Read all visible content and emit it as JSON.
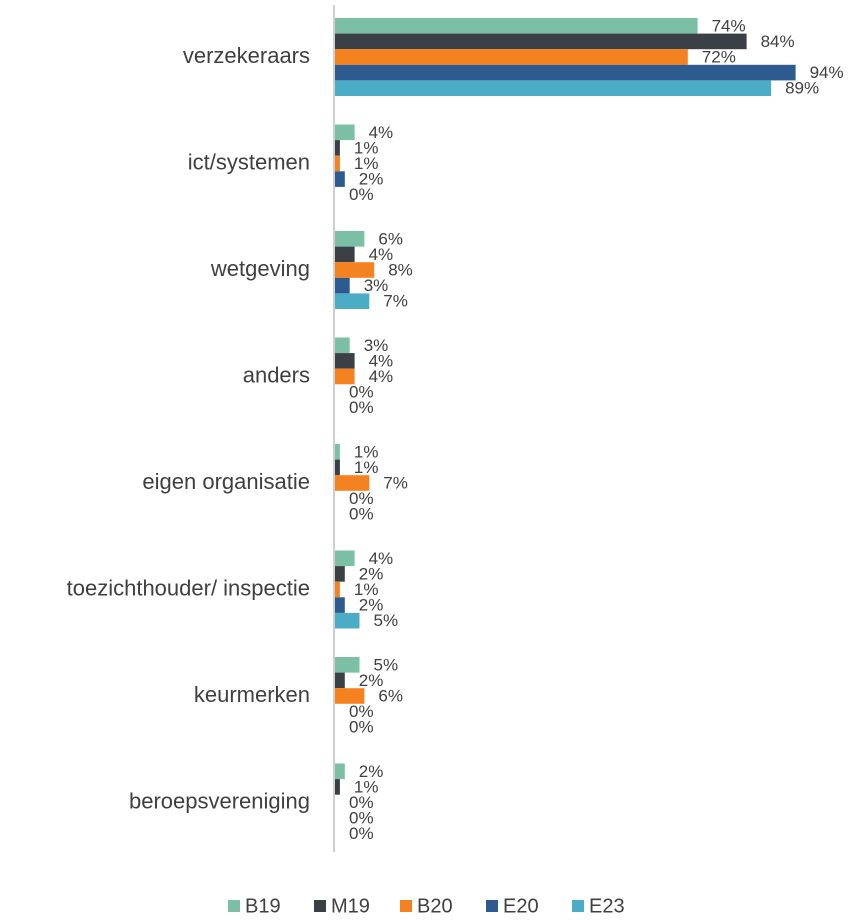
{
  "chart_data": {
    "type": "hbar",
    "categories": [
      "verzekeraars",
      "ict/systemen",
      "wetgeving",
      "anders",
      "eigen organisatie",
      "toezichthouder/ inspectie",
      "keurmerken",
      "beroepsvereniging"
    ],
    "series": [
      {
        "name": "B19",
        "color": "#7bbfa5",
        "values": [
          74,
          4,
          6,
          3,
          1,
          4,
          5,
          2
        ],
        "value_labels": [
          "74%",
          "4%",
          "6%",
          "3%",
          "1%",
          "4%",
          "5%",
          "2%"
        ]
      },
      {
        "name": "M19",
        "color": "#3b3f46",
        "values": [
          84,
          1,
          4,
          4,
          1,
          2,
          2,
          1
        ],
        "value_labels": [
          "84%",
          "1%",
          "4%",
          "4%",
          "1%",
          "2%",
          "2%",
          "1%"
        ]
      },
      {
        "name": "B20",
        "color": "#f58220",
        "values": [
          72,
          1,
          8,
          4,
          7,
          1,
          6,
          0
        ],
        "value_labels": [
          "72%",
          "1%",
          "8%",
          "4%",
          "7%",
          "1%",
          "6%",
          "0%"
        ]
      },
      {
        "name": "E20",
        "color": "#2d5a8f",
        "values": [
          94,
          2,
          3,
          0,
          0,
          2,
          0,
          0
        ],
        "value_labels": [
          "94%",
          "2%",
          "3%",
          "0%",
          "0%",
          "2%",
          "0%",
          "0%"
        ]
      },
      {
        "name": "E23",
        "color": "#4bacc6",
        "values": [
          89,
          0,
          7,
          0,
          0,
          5,
          0,
          0
        ],
        "value_labels": [
          "89%",
          "0%",
          "7%",
          "0%",
          "0%",
          "5%",
          "0%",
          "0%"
        ]
      }
    ],
    "legend": "bottom"
  }
}
